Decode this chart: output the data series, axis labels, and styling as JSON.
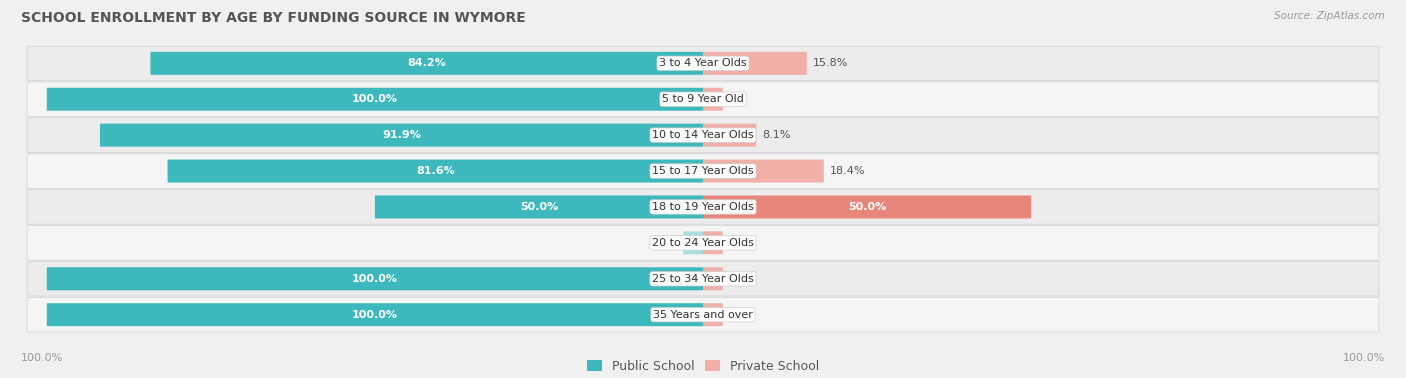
{
  "title": "SCHOOL ENROLLMENT BY AGE BY FUNDING SOURCE IN WYMORE",
  "source": "Source: ZipAtlas.com",
  "categories": [
    "3 to 4 Year Olds",
    "5 to 9 Year Old",
    "10 to 14 Year Olds",
    "15 to 17 Year Olds",
    "18 to 19 Year Olds",
    "20 to 24 Year Olds",
    "25 to 34 Year Olds",
    "35 Years and over"
  ],
  "public_values": [
    84.2,
    100.0,
    91.9,
    81.6,
    50.0,
    0.0,
    100.0,
    100.0
  ],
  "private_values": [
    15.8,
    0.0,
    8.1,
    18.4,
    50.0,
    0.0,
    0.0,
    0.0
  ],
  "public_color": "#3db8bc",
  "private_color": "#e8867c",
  "public_color_light": "#a8dfe1",
  "private_color_light": "#f0b0a8",
  "row_color_even": "#ececec",
  "row_color_odd": "#f5f5f5",
  "background_color": "#f0f0f0",
  "bar_height": 0.62,
  "title_fontsize": 10,
  "label_fontsize": 8,
  "tick_fontsize": 8,
  "legend_fontsize": 9
}
